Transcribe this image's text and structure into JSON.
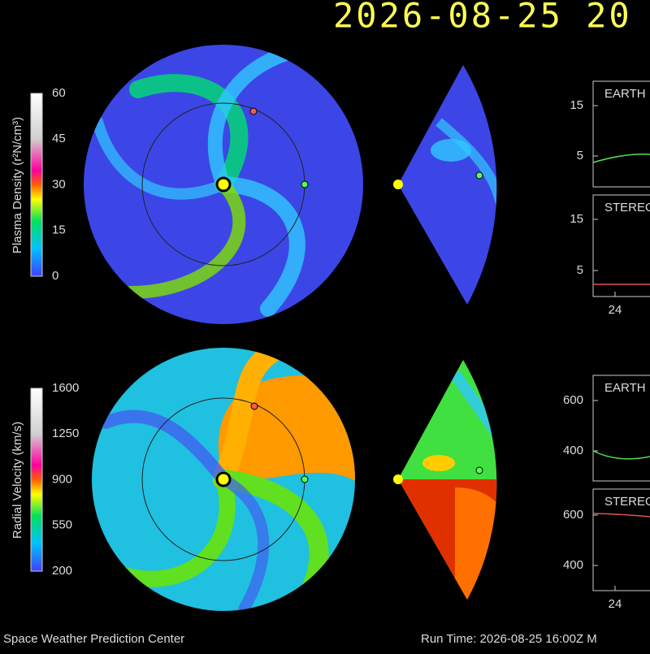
{
  "header": {
    "title": "2026-08-25  20"
  },
  "density": {
    "colorbar": {
      "label": "Plasma Density (r²N/cm³)",
      "ticks": [
        60,
        45,
        30,
        15,
        0
      ]
    },
    "plots": [
      {
        "label": "EARTH",
        "yticks": [
          15,
          5
        ]
      },
      {
        "label": "STEREO",
        "yticks": [
          15,
          5
        ]
      }
    ],
    "xtick": "24"
  },
  "velocity": {
    "colorbar": {
      "label": "Radial Velocity (km/s)",
      "ticks": [
        1600,
        1250,
        900,
        550,
        200
      ]
    },
    "plots": [
      {
        "label": "EARTH",
        "yticks": [
          600,
          400
        ]
      },
      {
        "label": "STEREO",
        "yticks": [
          600,
          400
        ]
      }
    ],
    "xtick": "24"
  },
  "footer": {
    "left": "Space Weather Prediction Center",
    "right": "Run Time: 2026-08-25 16:00Z  M"
  }
}
